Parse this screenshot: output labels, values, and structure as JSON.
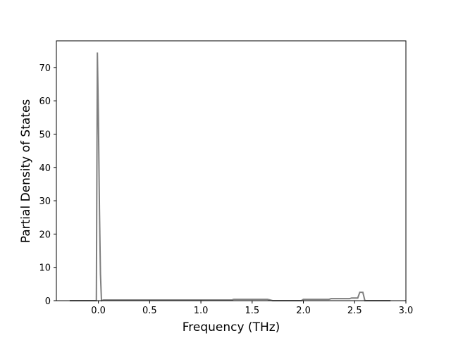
{
  "chart_data": {
    "type": "line",
    "x_label": "Frequency (THz)",
    "y_label": "Partial Density of States",
    "x": [
      -0.28,
      -0.02,
      -0.01,
      0.0,
      0.01,
      0.02,
      0.03,
      0.05,
      1.3,
      1.32,
      1.65,
      1.7,
      1.98,
      2.0,
      2.25,
      2.27,
      2.45,
      2.47,
      2.53,
      2.55,
      2.58,
      2.6,
      2.85
    ],
    "series": [
      {
        "color": "#7f7f7f",
        "values": [
          0,
          0,
          74.5,
          55,
          28,
          8,
          0,
          0.2,
          0.2,
          0.4,
          0.4,
          0,
          0,
          0.4,
          0.4,
          0.6,
          0.6,
          0.8,
          0.8,
          2.5,
          2.5,
          0,
          0
        ]
      }
    ],
    "xlim": [
      -0.41,
      3.0
    ],
    "ylim": [
      0,
      78
    ],
    "xticks": [
      {
        "value": 0,
        "label": "0.0"
      },
      {
        "value": 0.5,
        "label": "0.5"
      },
      {
        "value": 1,
        "label": "1.0"
      },
      {
        "value": 1.5,
        "label": "1.5"
      },
      {
        "value": 2,
        "label": "2.0"
      },
      {
        "value": 2.5,
        "label": "2.5"
      },
      {
        "value": 3,
        "label": "3.0"
      }
    ],
    "yticks": [
      0,
      10,
      20,
      30,
      40,
      50,
      60,
      70
    ]
  }
}
